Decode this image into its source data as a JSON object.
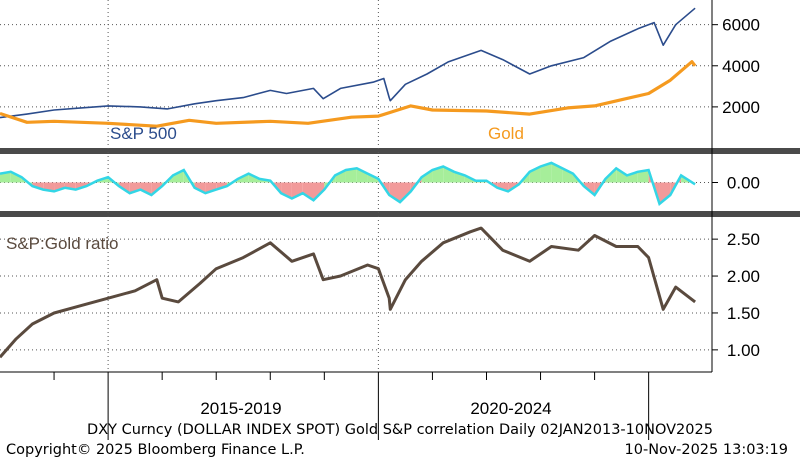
{
  "chart_data": [
    {
      "type": "line",
      "panel": "top",
      "ylim": [
        0,
        7200
      ],
      "yticks": [
        2000,
        4000,
        6000
      ],
      "grid": true,
      "series": [
        {
          "name": "S&P 500",
          "color": "#2b4c8c",
          "x": [
            2013.0,
            2013.5,
            2014.0,
            2014.5,
            2015.0,
            2015.6,
            2016.1,
            2016.6,
            2017.0,
            2017.5,
            2018.0,
            2018.3,
            2018.8,
            2018.98,
            2019.3,
            2019.9,
            2020.1,
            2020.2,
            2020.22,
            2020.5,
            2020.9,
            2021.3,
            2021.9,
            2022.3,
            2022.8,
            2023.2,
            2023.8,
            2024.3,
            2024.8,
            2025.1,
            2025.27,
            2025.5,
            2025.86
          ],
          "values": [
            1480,
            1650,
            1850,
            1950,
            2050,
            2000,
            1900,
            2150,
            2300,
            2450,
            2800,
            2650,
            2900,
            2400,
            2900,
            3200,
            3380,
            2450,
            2300,
            3100,
            3600,
            4200,
            4750,
            4300,
            3600,
            4000,
            4400,
            5200,
            5800,
            6100,
            5000,
            6000,
            6800
          ]
        },
        {
          "name": "Gold",
          "color": "#f59a1f",
          "x": [
            2013.0,
            2013.5,
            2014.0,
            2015.0,
            2015.9,
            2016.5,
            2017.0,
            2018.0,
            2018.7,
            2019.5,
            2020.0,
            2020.6,
            2021.0,
            2022.0,
            2022.8,
            2023.5,
            2024.0,
            2024.5,
            2025.0,
            2025.4,
            2025.8,
            2025.86
          ],
          "values": [
            1680,
            1250,
            1300,
            1200,
            1060,
            1350,
            1200,
            1300,
            1200,
            1500,
            1550,
            2050,
            1850,
            1800,
            1650,
            1950,
            2050,
            2350,
            2650,
            3300,
            4200,
            4000
          ]
        }
      ]
    },
    {
      "type": "area",
      "panel": "middle",
      "title": "DXY Curncy (DOLLAR INDEX SPOT) Gold S&P correlation",
      "ylim": [
        -0.8,
        0.8
      ],
      "yticks": [
        0.0
      ],
      "grid": true,
      "x": [
        2013.0,
        2013.2,
        2013.4,
        2013.6,
        2013.8,
        2014.0,
        2014.2,
        2014.4,
        2014.6,
        2014.8,
        2015.0,
        2015.2,
        2015.4,
        2015.6,
        2015.8,
        2016.0,
        2016.2,
        2016.4,
        2016.6,
        2016.8,
        2017.0,
        2017.2,
        2017.4,
        2017.6,
        2017.8,
        2018.0,
        2018.2,
        2018.4,
        2018.6,
        2018.8,
        2019.0,
        2019.2,
        2019.4,
        2019.6,
        2019.8,
        2020.0,
        2020.2,
        2020.4,
        2020.6,
        2020.8,
        2021.0,
        2021.2,
        2021.4,
        2021.6,
        2021.8,
        2022.0,
        2022.2,
        2022.4,
        2022.6,
        2022.8,
        2023.0,
        2023.2,
        2023.4,
        2023.6,
        2023.8,
        2024.0,
        2024.2,
        2024.4,
        2024.6,
        2024.8,
        2025.0,
        2025.2,
        2025.4,
        2025.6,
        2025.86
      ],
      "values": [
        0.25,
        0.3,
        0.15,
        -0.1,
        -0.2,
        -0.25,
        -0.15,
        -0.2,
        -0.1,
        0.05,
        0.15,
        -0.1,
        -0.3,
        -0.2,
        -0.35,
        -0.1,
        0.2,
        0.35,
        -0.15,
        -0.3,
        -0.2,
        -0.1,
        0.1,
        0.25,
        0.1,
        0.05,
        -0.3,
        -0.45,
        -0.3,
        -0.5,
        -0.2,
        0.2,
        0.35,
        0.4,
        0.25,
        0.1,
        -0.35,
        -0.55,
        -0.25,
        0.15,
        0.35,
        0.45,
        0.3,
        0.2,
        0.05,
        0.05,
        -0.15,
        -0.25,
        -0.05,
        0.3,
        0.45,
        0.55,
        0.4,
        0.25,
        -0.1,
        -0.35,
        0.1,
        0.4,
        0.2,
        0.3,
        0.35,
        -0.6,
        -0.35,
        0.2,
        -0.05
      ]
    },
    {
      "type": "line",
      "panel": "bottom",
      "ylim": [
        0.7,
        2.8
      ],
      "yticks": [
        1.0,
        1.5,
        2.0,
        2.5
      ],
      "grid": true,
      "series": [
        {
          "name": "S&P:Gold ratio",
          "color": "#5a4a3e",
          "x": [
            2013.0,
            2013.3,
            2013.6,
            2014.0,
            2014.5,
            2015.0,
            2015.5,
            2015.9,
            2016.0,
            2016.3,
            2016.7,
            2017.0,
            2017.5,
            2018.0,
            2018.4,
            2018.8,
            2018.98,
            2019.3,
            2019.8,
            2020.0,
            2020.2,
            2020.22,
            2020.5,
            2020.8,
            2021.2,
            2021.7,
            2021.9,
            2022.3,
            2022.8,
            2023.2,
            2023.7,
            2024.0,
            2024.4,
            2024.8,
            2025.0,
            2025.27,
            2025.5,
            2025.86
          ],
          "values": [
            0.9,
            1.15,
            1.35,
            1.5,
            1.6,
            1.7,
            1.8,
            1.95,
            1.7,
            1.65,
            1.9,
            2.1,
            2.25,
            2.45,
            2.2,
            2.3,
            1.95,
            2.0,
            2.15,
            2.1,
            1.7,
            1.55,
            1.95,
            2.2,
            2.45,
            2.6,
            2.65,
            2.35,
            2.2,
            2.4,
            2.35,
            2.55,
            2.4,
            2.4,
            2.25,
            1.55,
            1.85,
            1.65
          ]
        }
      ]
    }
  ],
  "x_axis": {
    "period_labels": [
      "2015-2019",
      "2020-2024"
    ]
  },
  "labels": {
    "spx": "S&P 500",
    "gold": "Gold",
    "ratio": "S&P:Gold ratio"
  },
  "footer": {
    "title_line": "DXY Curncy (DOLLAR INDEX SPOT) Gold S&P correlation Daily 02JAN2013-10NOV2025",
    "copyright": "Copyright© 2025 Bloomberg Finance L.P.",
    "timestamp": "10-Nov-2025 13:03:19"
  },
  "colors": {
    "spx": "#2b4c8c",
    "gold": "#f59a1f",
    "ratio": "#5a4a3e",
    "corr_line": "#33d6e6",
    "corr_pos": "#a6ee9a",
    "corr_neg": "#f29a9a",
    "separator": "#4a4a4a"
  }
}
